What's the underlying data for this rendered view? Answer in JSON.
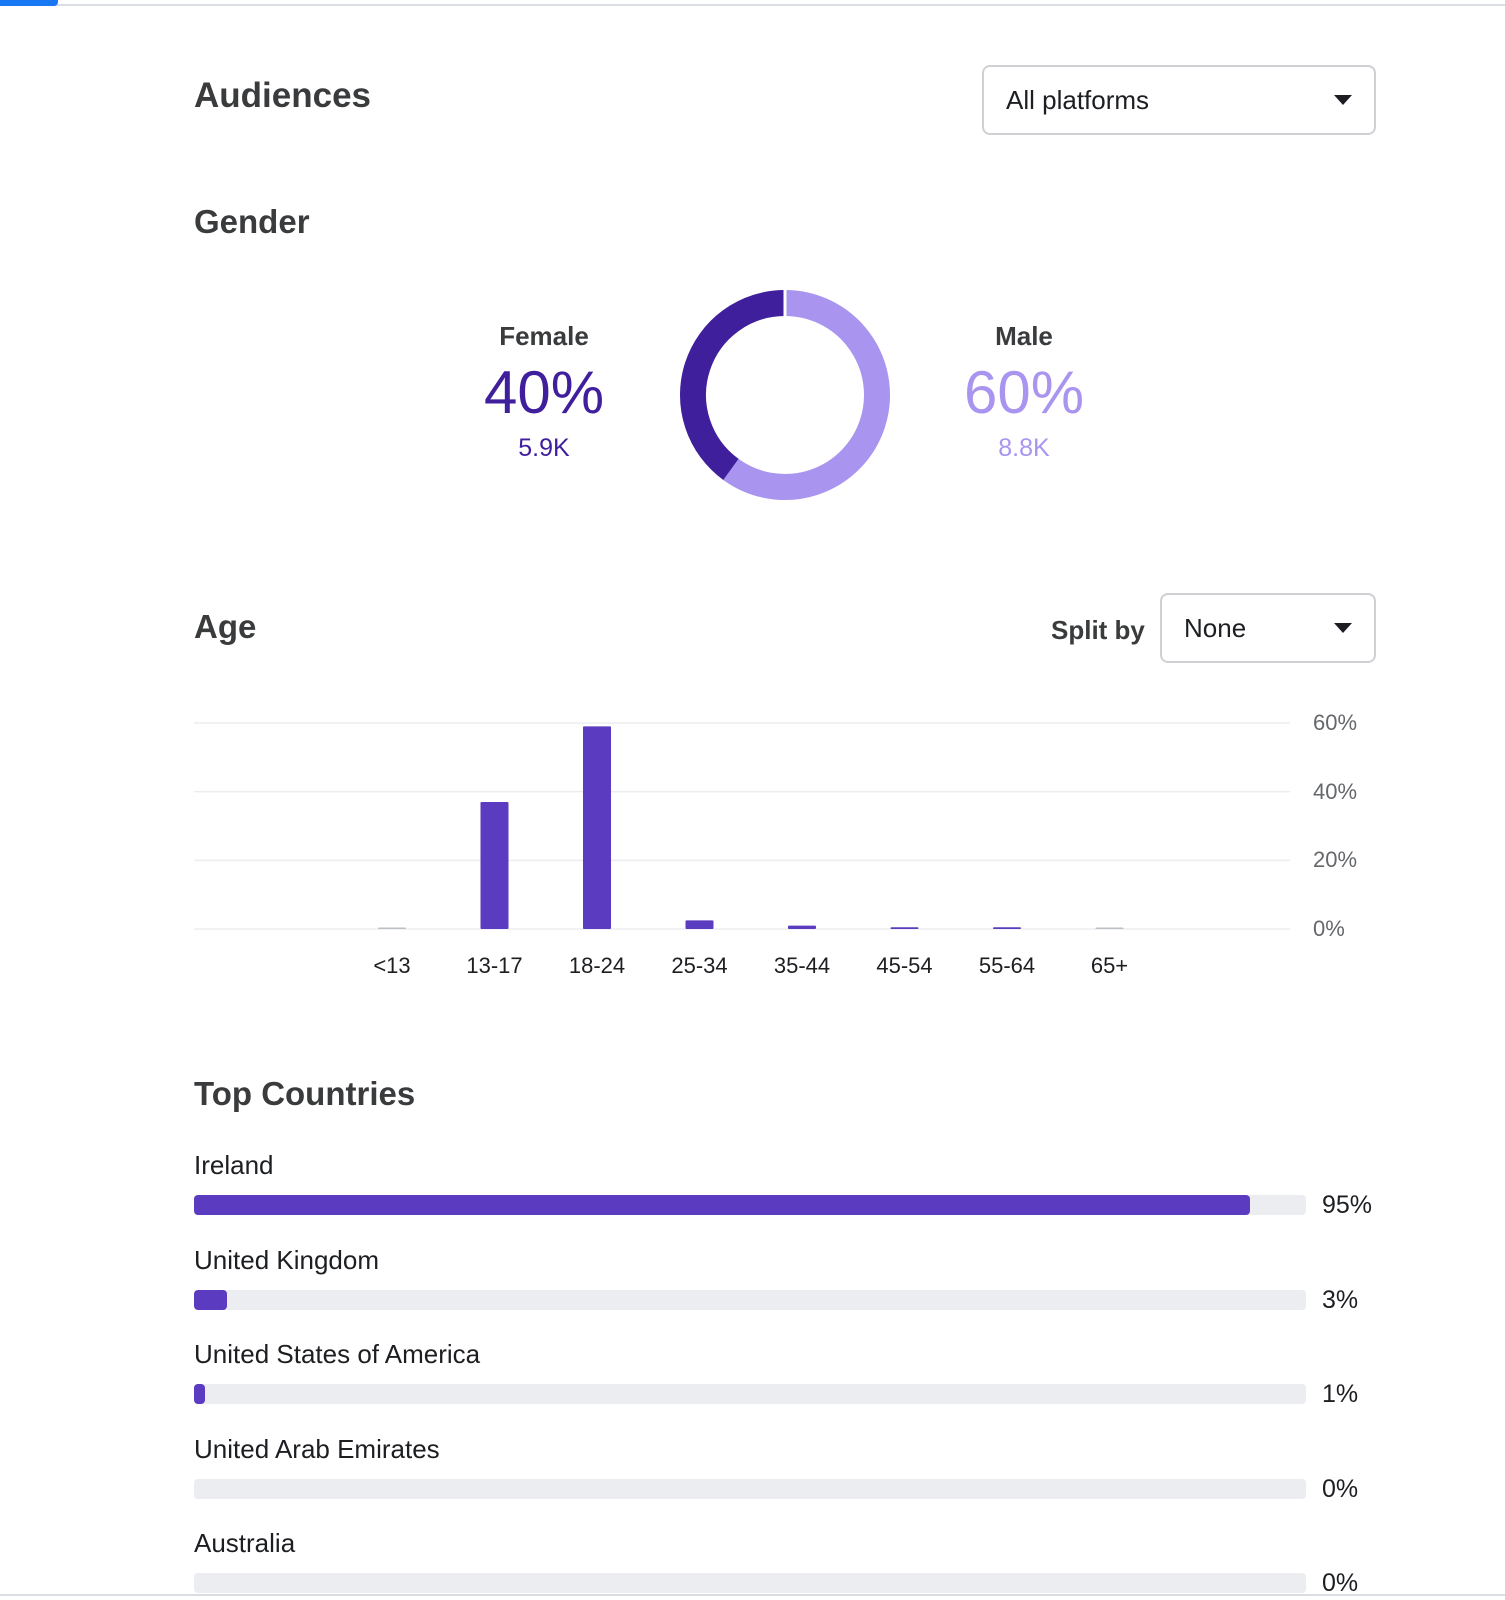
{
  "header": {
    "title": "Audiences",
    "platform_dropdown": {
      "selected": "All platforms"
    }
  },
  "gender": {
    "title": "Gender",
    "female": {
      "label": "Female",
      "percent": "40%",
      "count": "5.9K",
      "share": 0.4,
      "color": "#3f1f9c"
    },
    "male": {
      "label": "Male",
      "percent": "60%",
      "count": "8.8K",
      "share": 0.6,
      "color": "#a994ef"
    }
  },
  "age": {
    "title": "Age",
    "split_label": "Split by",
    "split_dropdown": {
      "selected": "None"
    }
  },
  "chart_data": {
    "type": "bar",
    "categories": [
      "<13",
      "13-17",
      "18-24",
      "25-34",
      "35-44",
      "45-54",
      "55-64",
      "65+"
    ],
    "values": [
      0,
      37,
      59,
      2.5,
      1,
      0.5,
      0.5,
      0
    ],
    "y_ticks": [
      "60%",
      "40%",
      "20%",
      "0%"
    ],
    "ylim": [
      0,
      60
    ],
    "grid": true,
    "bar_color": "#5b3bbf",
    "zero_color": "#bcc0c4"
  },
  "countries": {
    "title": "Top Countries",
    "items": [
      {
        "name": "Ireland",
        "percent": "95%",
        "share": 0.95
      },
      {
        "name": "United Kingdom",
        "percent": "3%",
        "share": 0.03
      },
      {
        "name": "United States of America",
        "percent": "1%",
        "share": 0.01
      },
      {
        "name": "United Arab Emirates",
        "percent": "0%",
        "share": 0
      },
      {
        "name": "Australia",
        "percent": "0%",
        "share": 0
      }
    ]
  }
}
